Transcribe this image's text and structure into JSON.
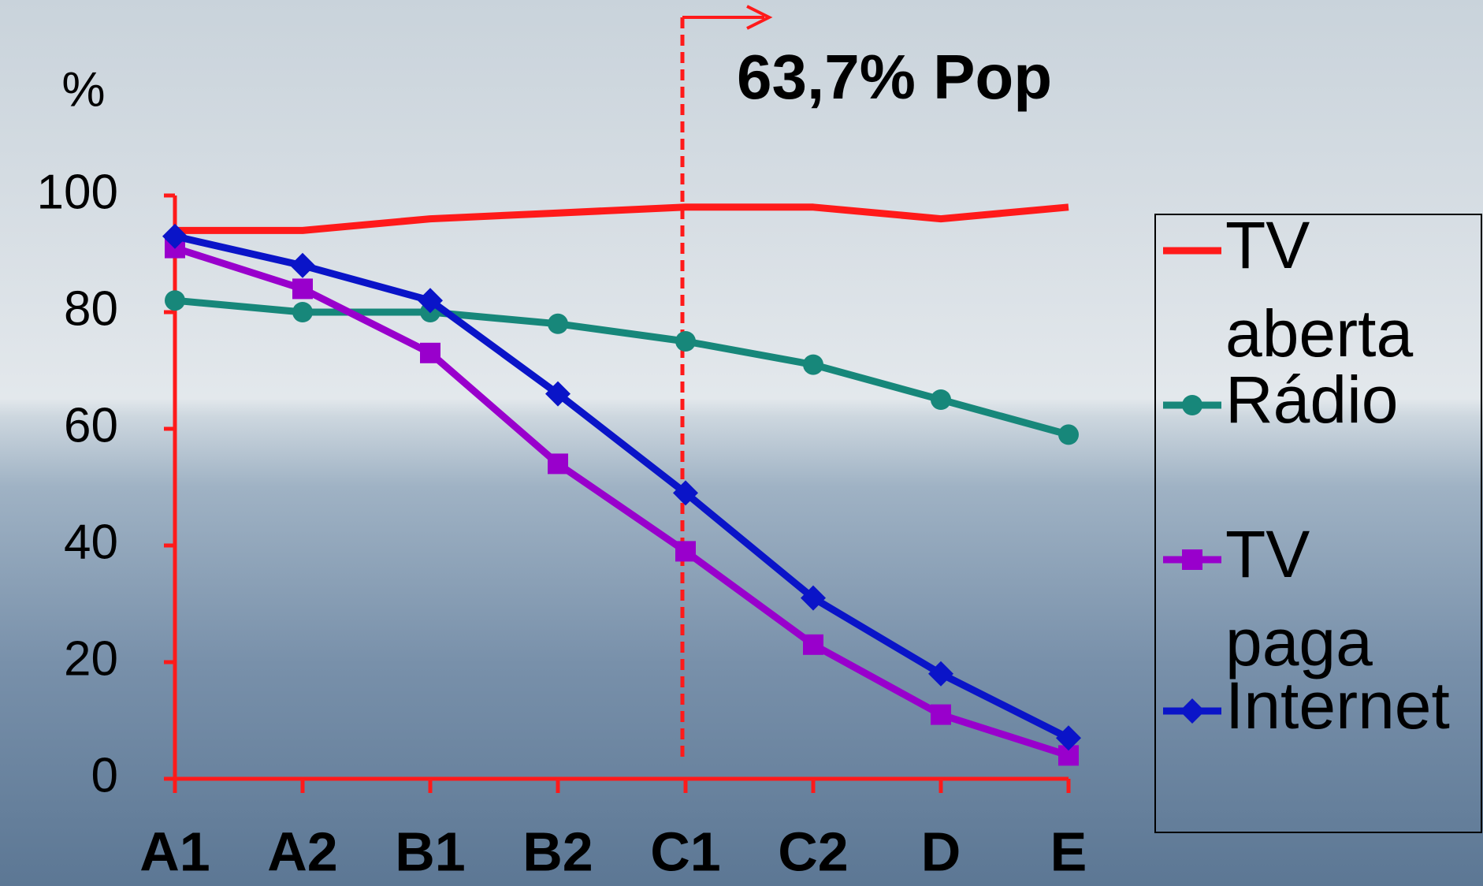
{
  "chart_data": {
    "type": "line",
    "y_label": "%",
    "annotation": "63,7% Pop",
    "categories": [
      "A1",
      "A2",
      "B1",
      "B2",
      "C1",
      "C2",
      "D",
      "E"
    ],
    "ylim": [
      0,
      100
    ],
    "yticks": [
      0,
      20,
      40,
      60,
      80,
      100
    ],
    "series": [
      {
        "name": "TV aberta",
        "color": "#ff1a1a",
        "marker": "none",
        "values": [
          94,
          94,
          96,
          97,
          98,
          98,
          96,
          98
        ]
      },
      {
        "name": "Rádio",
        "color": "#17877a",
        "marker": "circle",
        "values": [
          82,
          80,
          80,
          78,
          75,
          71,
          65,
          59
        ]
      },
      {
        "name": "TV paga",
        "color": "#9900cc",
        "marker": "square",
        "values": [
          91,
          84,
          73,
          54,
          39,
          23,
          11,
          4
        ]
      },
      {
        "name": "Internet",
        "color": "#0a14c8",
        "marker": "diamond",
        "values": [
          93,
          88,
          82,
          66,
          49,
          31,
          18,
          7
        ]
      }
    ]
  }
}
